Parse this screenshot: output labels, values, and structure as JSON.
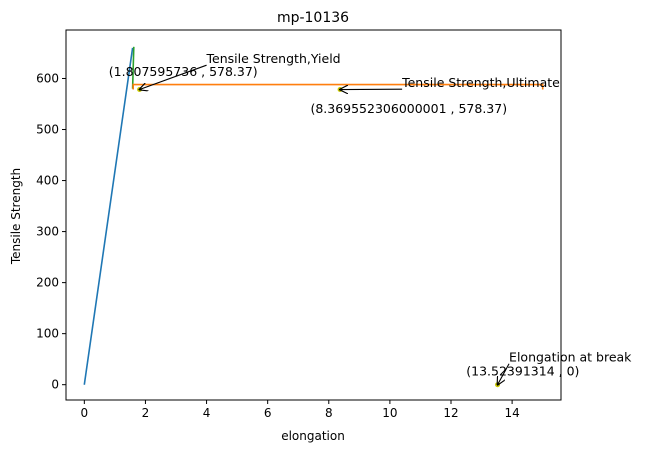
{
  "chart_data": {
    "type": "line",
    "title": "mp-10136",
    "xlabel": "elongation",
    "ylabel": "Tensile Strength",
    "xlim": [
      -0.6,
      15.6
    ],
    "ylim": [
      -30,
      695
    ],
    "xticks": [
      0,
      2,
      4,
      6,
      8,
      10,
      12,
      14
    ],
    "yticks": [
      0,
      100,
      200,
      300,
      400,
      500,
      600
    ],
    "grid": false,
    "series": [
      {
        "color": "#1f77b4",
        "points": [
          [
            0,
            0
          ],
          [
            1.58,
            660
          ]
        ]
      },
      {
        "color": "#2ca02c",
        "points": [
          [
            1.58,
            580
          ],
          [
            1.62,
            662
          ]
        ]
      },
      {
        "color": "#ff7f0e",
        "points": [
          [
            1.6,
            578.37
          ],
          [
            1.6,
            588
          ],
          [
            15,
            588
          ],
          [
            15,
            578.37
          ]
        ]
      }
    ],
    "markers": [
      {
        "color": "#c8c800",
        "x": 1.807595736,
        "y": 578.37
      },
      {
        "color": "#c8c800",
        "x": 8.369552306000001,
        "y": 578.37
      },
      {
        "color": "#c8c800",
        "x": 13.52391314,
        "y": 0
      }
    ],
    "annotations": [
      {
        "label": "Tensile Strength,Yield",
        "coord": "(1.807595736 , 578.37)",
        "target": [
          1.807595736,
          578.37
        ],
        "text_at": [
          4,
          630
        ],
        "coord_at": [
          0.8,
          605
        ]
      },
      {
        "label": "Tensile Strength,Ultimate",
        "coord": "(8.369552306000001 , 578.37)",
        "target": [
          8.369552306000001,
          578.37
        ],
        "text_at": [
          10.4,
          583
        ],
        "coord_at": [
          7.4,
          532
        ]
      },
      {
        "label": "Elongation at break",
        "coord": "(13.52391314 , 0)",
        "target": [
          13.52391314,
          0
        ],
        "text_at": [
          13.9,
          45
        ],
        "coord_at": [
          12.5,
          18
        ]
      }
    ]
  }
}
